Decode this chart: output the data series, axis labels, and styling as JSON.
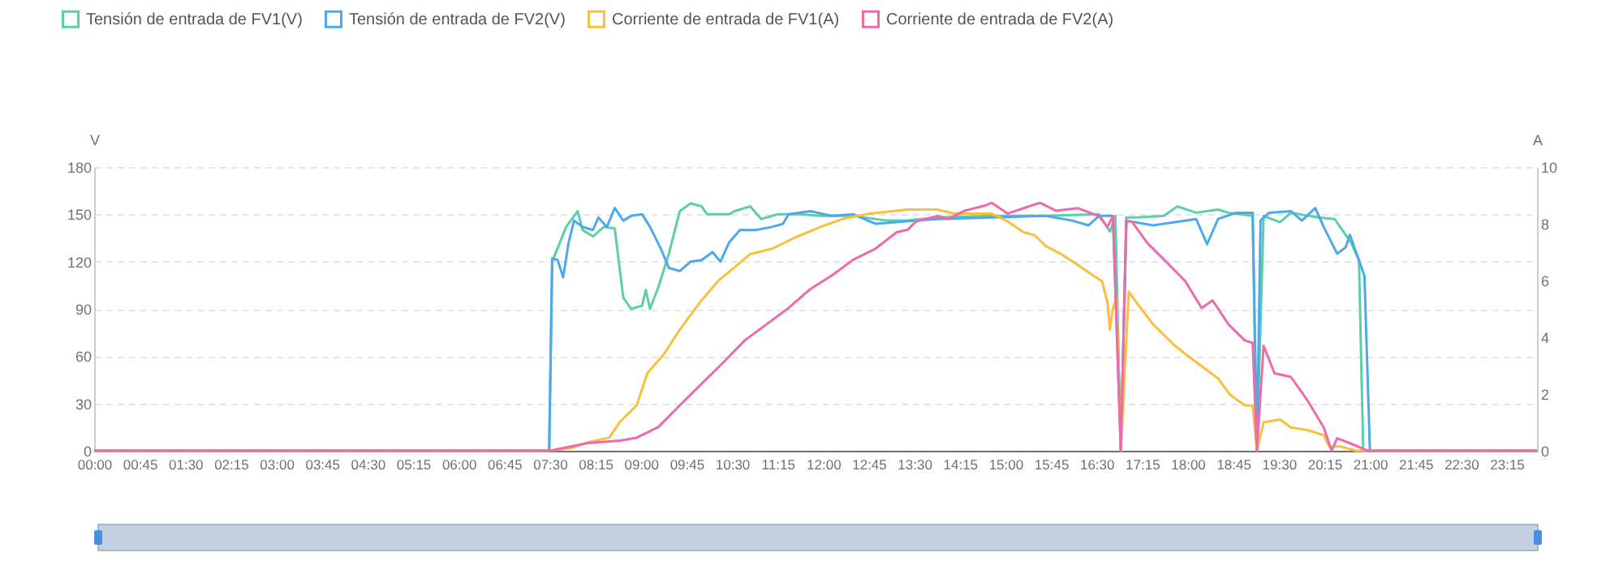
{
  "chart_data": {
    "type": "line",
    "ylabel": "V",
    "y2label": "A",
    "legend": "top left",
    "grid": "y",
    "marker": "none",
    "line_style": "solid",
    "xlim": [
      0,
      23.75
    ],
    "xticks": [
      {
        "value": 0,
        "label": "00:00"
      },
      {
        "value": 0.75,
        "label": "00:45"
      },
      {
        "value": 1.5,
        "label": "01:30"
      },
      {
        "value": 2.25,
        "label": "02:15"
      },
      {
        "value": 3,
        "label": "03:00"
      },
      {
        "value": 3.75,
        "label": "03:45"
      },
      {
        "value": 4.5,
        "label": "04:30"
      },
      {
        "value": 5.25,
        "label": "05:15"
      },
      {
        "value": 6,
        "label": "06:00"
      },
      {
        "value": 6.75,
        "label": "06:45"
      },
      {
        "value": 7.5,
        "label": "07:30"
      },
      {
        "value": 8.25,
        "label": "08:15"
      },
      {
        "value": 9,
        "label": "09:00"
      },
      {
        "value": 9.75,
        "label": "09:45"
      },
      {
        "value": 10.5,
        "label": "10:30"
      },
      {
        "value": 11.25,
        "label": "11:15"
      },
      {
        "value": 12,
        "label": "12:00"
      },
      {
        "value": 12.75,
        "label": "12:45"
      },
      {
        "value": 13.5,
        "label": "13:30"
      },
      {
        "value": 14.25,
        "label": "14:15"
      },
      {
        "value": 15,
        "label": "15:00"
      },
      {
        "value": 15.75,
        "label": "15:45"
      },
      {
        "value": 16.5,
        "label": "16:30"
      },
      {
        "value": 17.25,
        "label": "17:15"
      },
      {
        "value": 18,
        "label": "18:00"
      },
      {
        "value": 18.75,
        "label": "18:45"
      },
      {
        "value": 19.5,
        "label": "19:30"
      },
      {
        "value": 20.25,
        "label": "20:15"
      },
      {
        "value": 21,
        "label": "21:00"
      },
      {
        "value": 21.75,
        "label": "21:45"
      },
      {
        "value": 22.5,
        "label": "22:30"
      },
      {
        "value": 23.25,
        "label": "23:15"
      }
    ],
    "ylim": [
      0,
      180
    ],
    "yticks": [
      0,
      30,
      60,
      90,
      120,
      150,
      180
    ],
    "y2lim": [
      0,
      10
    ],
    "y2ticks": [
      0,
      2,
      4,
      6,
      8,
      10
    ],
    "series": [
      {
        "name": "Tensión de entrada de FV1(V)",
        "color": "#5ccfa5",
        "x": [
          0,
          7.49,
          7.54,
          7.77,
          7.96,
          8.04,
          8.21,
          8.39,
          8.57,
          8.62,
          8.71,
          8.84,
          9.02,
          9.08,
          9.15,
          9.29,
          9.46,
          9.64,
          9.82,
          10.0,
          10.09,
          10.45,
          10.54,
          10.8,
          10.98,
          11.25,
          11.61,
          11.96,
          12.5,
          13.04,
          13.39,
          13.88,
          14.77,
          15.66,
          16.54,
          16.72,
          16.81,
          16.9,
          16.99,
          17.16,
          17.61,
          17.83,
          18.14,
          18.5,
          18.67,
          19.07,
          19.14,
          19.25,
          19.52,
          19.7,
          20.15,
          20.42,
          20.69,
          20.82,
          20.89,
          23.75
        ],
        "values": [
          0,
          0,
          120,
          142,
          152,
          140,
          136,
          142,
          141,
          125,
          97,
          90,
          92,
          102,
          90,
          104,
          125,
          152,
          157,
          155,
          150,
          150,
          152,
          155,
          147,
          150,
          150,
          149,
          149,
          146,
          146,
          148,
          149,
          149,
          150,
          139,
          149,
          0,
          148,
          148,
          149,
          155,
          151,
          153,
          151,
          149,
          0,
          149,
          145,
          151,
          148,
          147,
          132,
          121,
          0,
          0
        ]
      },
      {
        "name": "Tensión de entrada de FV2(V)",
        "color": "#4ea9ea",
        "x": [
          0,
          7.49,
          7.54,
          7.63,
          7.72,
          7.81,
          7.9,
          8.04,
          8.21,
          8.3,
          8.44,
          8.57,
          8.71,
          8.84,
          9.02,
          9.15,
          9.33,
          9.46,
          9.64,
          9.82,
          10.0,
          10.18,
          10.31,
          10.45,
          10.63,
          10.89,
          11.16,
          11.34,
          11.43,
          11.79,
          12.14,
          12.5,
          12.86,
          13.21,
          13.53,
          13.88,
          14.77,
          15.66,
          16.1,
          16.37,
          16.54,
          16.77,
          16.9,
          16.99,
          17.43,
          17.79,
          18.14,
          18.32,
          18.5,
          18.8,
          19.07,
          19.14,
          19.2,
          19.34,
          19.7,
          19.88,
          20.1,
          20.24,
          20.46,
          20.6,
          20.67,
          20.78,
          20.91,
          21.0,
          23.75
        ],
        "values": [
          0,
          0,
          122,
          121,
          110,
          132,
          146,
          142,
          140,
          148,
          142,
          154,
          146,
          149,
          150,
          142,
          128,
          116,
          114,
          120,
          121,
          126,
          120,
          132,
          140,
          140,
          142,
          144,
          150,
          152,
          149,
          150,
          144,
          145,
          146,
          147,
          148,
          149,
          146,
          143,
          149,
          149,
          0,
          146,
          143,
          145,
          147,
          131,
          147,
          151,
          151,
          0,
          146,
          151,
          152,
          146,
          154,
          142,
          125,
          129,
          137,
          125,
          111,
          0,
          0
        ]
      },
      {
        "name": "Corriente de entrada de FV1(A)",
        "color": "#fac03d",
        "axis": "y2",
        "x": [
          0,
          7.5,
          7.86,
          8.13,
          8.48,
          8.66,
          8.93,
          9.11,
          9.38,
          9.64,
          10.0,
          10.27,
          10.54,
          10.8,
          11.16,
          11.52,
          11.96,
          12.32,
          12.77,
          13.39,
          13.53,
          13.88,
          14.15,
          14.5,
          14.77,
          15.04,
          15.3,
          15.48,
          15.66,
          15.92,
          16.19,
          16.45,
          16.59,
          16.68,
          16.72,
          16.77,
          16.83,
          16.9,
          17.03,
          17.16,
          17.43,
          17.79,
          18.14,
          18.5,
          18.7,
          18.94,
          19.07,
          19.14,
          19.25,
          19.52,
          19.7,
          19.97,
          20.24,
          20.33,
          20.51,
          20.78,
          23.75
        ],
        "values": [
          0,
          0,
          0.1,
          0.3,
          0.46,
          1.03,
          1.6,
          2.74,
          3.41,
          4.27,
          5.31,
          5.98,
          6.46,
          6.93,
          7.12,
          7.5,
          7.89,
          8.17,
          8.36,
          8.5,
          8.5,
          8.5,
          8.36,
          8.36,
          8.36,
          8.08,
          7.7,
          7.6,
          7.22,
          6.93,
          6.55,
          6.17,
          5.98,
          5.22,
          4.27,
          5.03,
          5.4,
          0,
          5.6,
          5.22,
          4.46,
          3.7,
          3.12,
          2.55,
          1.97,
          1.6,
          1.59,
          0,
          1.0,
          1.1,
          0.82,
          0.73,
          0.55,
          0.15,
          0.15,
          0,
          0
        ]
      },
      {
        "name": "Corriente de entrada de FV2(A)",
        "color": "#ee6ba9",
        "axis": "y2",
        "x": [
          0,
          7.5,
          8.13,
          8.66,
          8.93,
          9.29,
          9.64,
          10.0,
          10.36,
          10.71,
          11.07,
          11.43,
          11.79,
          12.14,
          12.5,
          12.86,
          13.21,
          13.39,
          13.53,
          13.88,
          14.06,
          14.33,
          14.68,
          14.77,
          15.04,
          15.3,
          15.57,
          15.83,
          16.19,
          16.54,
          16.68,
          16.77,
          16.9,
          16.99,
          17.08,
          17.34,
          17.61,
          17.96,
          18.23,
          18.41,
          18.67,
          18.94,
          19.07,
          19.14,
          19.25,
          19.43,
          19.7,
          19.97,
          20.24,
          20.37,
          20.46,
          20.69,
          20.96,
          23.75
        ],
        "values": [
          0,
          0,
          0.27,
          0.36,
          0.46,
          0.84,
          1.6,
          2.36,
          3.12,
          3.89,
          4.46,
          5.03,
          5.7,
          6.17,
          6.74,
          7.12,
          7.7,
          7.79,
          8.08,
          8.27,
          8.17,
          8.46,
          8.65,
          8.74,
          8.36,
          8.55,
          8.74,
          8.46,
          8.55,
          8.27,
          7.89,
          8.27,
          0,
          8.08,
          8.08,
          7.31,
          6.74,
          5.98,
          5.03,
          5.3,
          4.46,
          3.89,
          3.8,
          0,
          3.7,
          2.73,
          2.6,
          1.78,
          0.82,
          0,
          0.44,
          0.25,
          0,
          0
        ]
      }
    ]
  }
}
